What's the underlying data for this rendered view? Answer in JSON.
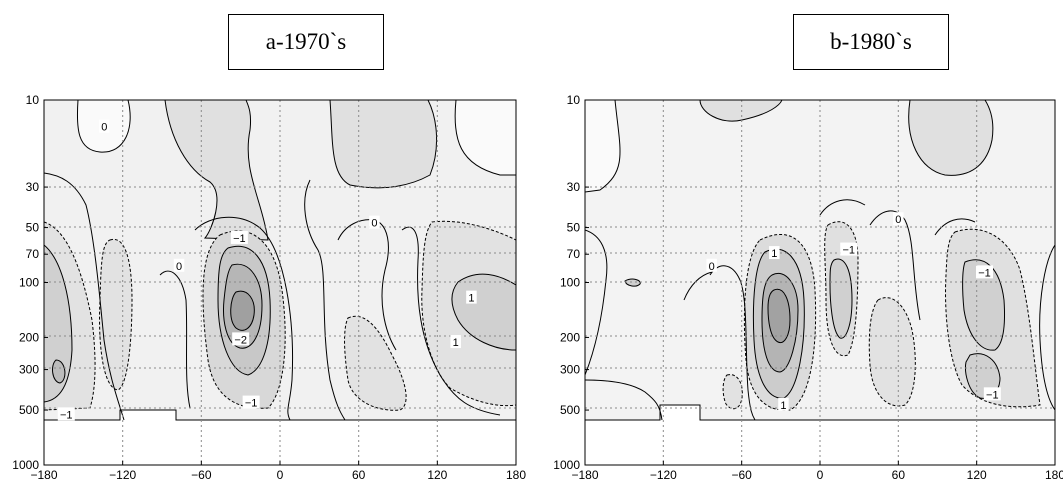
{
  "chart_data": [
    {
      "type": "contour",
      "title": "a-1970`s",
      "xlabel": "",
      "ylabel": "",
      "xlim": [
        -180,
        180
      ],
      "ylim": [
        1000,
        10
      ],
      "y_scale": "log",
      "x_ticks": [
        "-180",
        "-120",
        "-60",
        "0",
        "60",
        "120",
        "180"
      ],
      "y_ticks": [
        "10",
        "30",
        "50",
        "70",
        "100",
        "200",
        "300",
        "500",
        "1000"
      ],
      "grid": "dotted",
      "contour_labels": [
        {
          "text": "0",
          "x": -134,
          "y": 14
        },
        {
          "text": "0",
          "x": 72,
          "y": 47
        },
        {
          "text": "0",
          "x": -77,
          "y": 81
        },
        {
          "text": "-1",
          "x": -31,
          "y": 57
        },
        {
          "text": "-2",
          "x": -30,
          "y": 205
        },
        {
          "text": "-1",
          "x": -22,
          "y": 455
        },
        {
          "text": "-1",
          "x": -163,
          "y": 528
        },
        {
          "text": "1",
          "x": 146,
          "y": 121
        },
        {
          "text": "1",
          "x": 134,
          "y": 212
        }
      ]
    },
    {
      "type": "contour",
      "title": "b-1980`s",
      "xlabel": "",
      "ylabel": "",
      "xlim": [
        -180,
        180
      ],
      "ylim": [
        1000,
        10
      ],
      "y_scale": "log",
      "x_ticks": [
        "-180",
        "-120",
        "-60",
        "0",
        "60",
        "120",
        "180"
      ],
      "y_ticks": [
        "10",
        "30",
        "50",
        "70",
        "100",
        "200",
        "300",
        "500",
        "1000"
      ],
      "grid": "dotted",
      "contour_labels": [
        {
          "text": "0",
          "x": 60,
          "y": 45
        },
        {
          "text": "0",
          "x": -83,
          "y": 81
        },
        {
          "text": "1",
          "x": -35,
          "y": 69
        },
        {
          "text": "-1",
          "x": 22,
          "y": 66
        },
        {
          "text": "-1",
          "x": 126,
          "y": 88
        },
        {
          "text": "1",
          "x": -28,
          "y": 468
        },
        {
          "text": "-1",
          "x": 132,
          "y": 410
        }
      ]
    }
  ]
}
